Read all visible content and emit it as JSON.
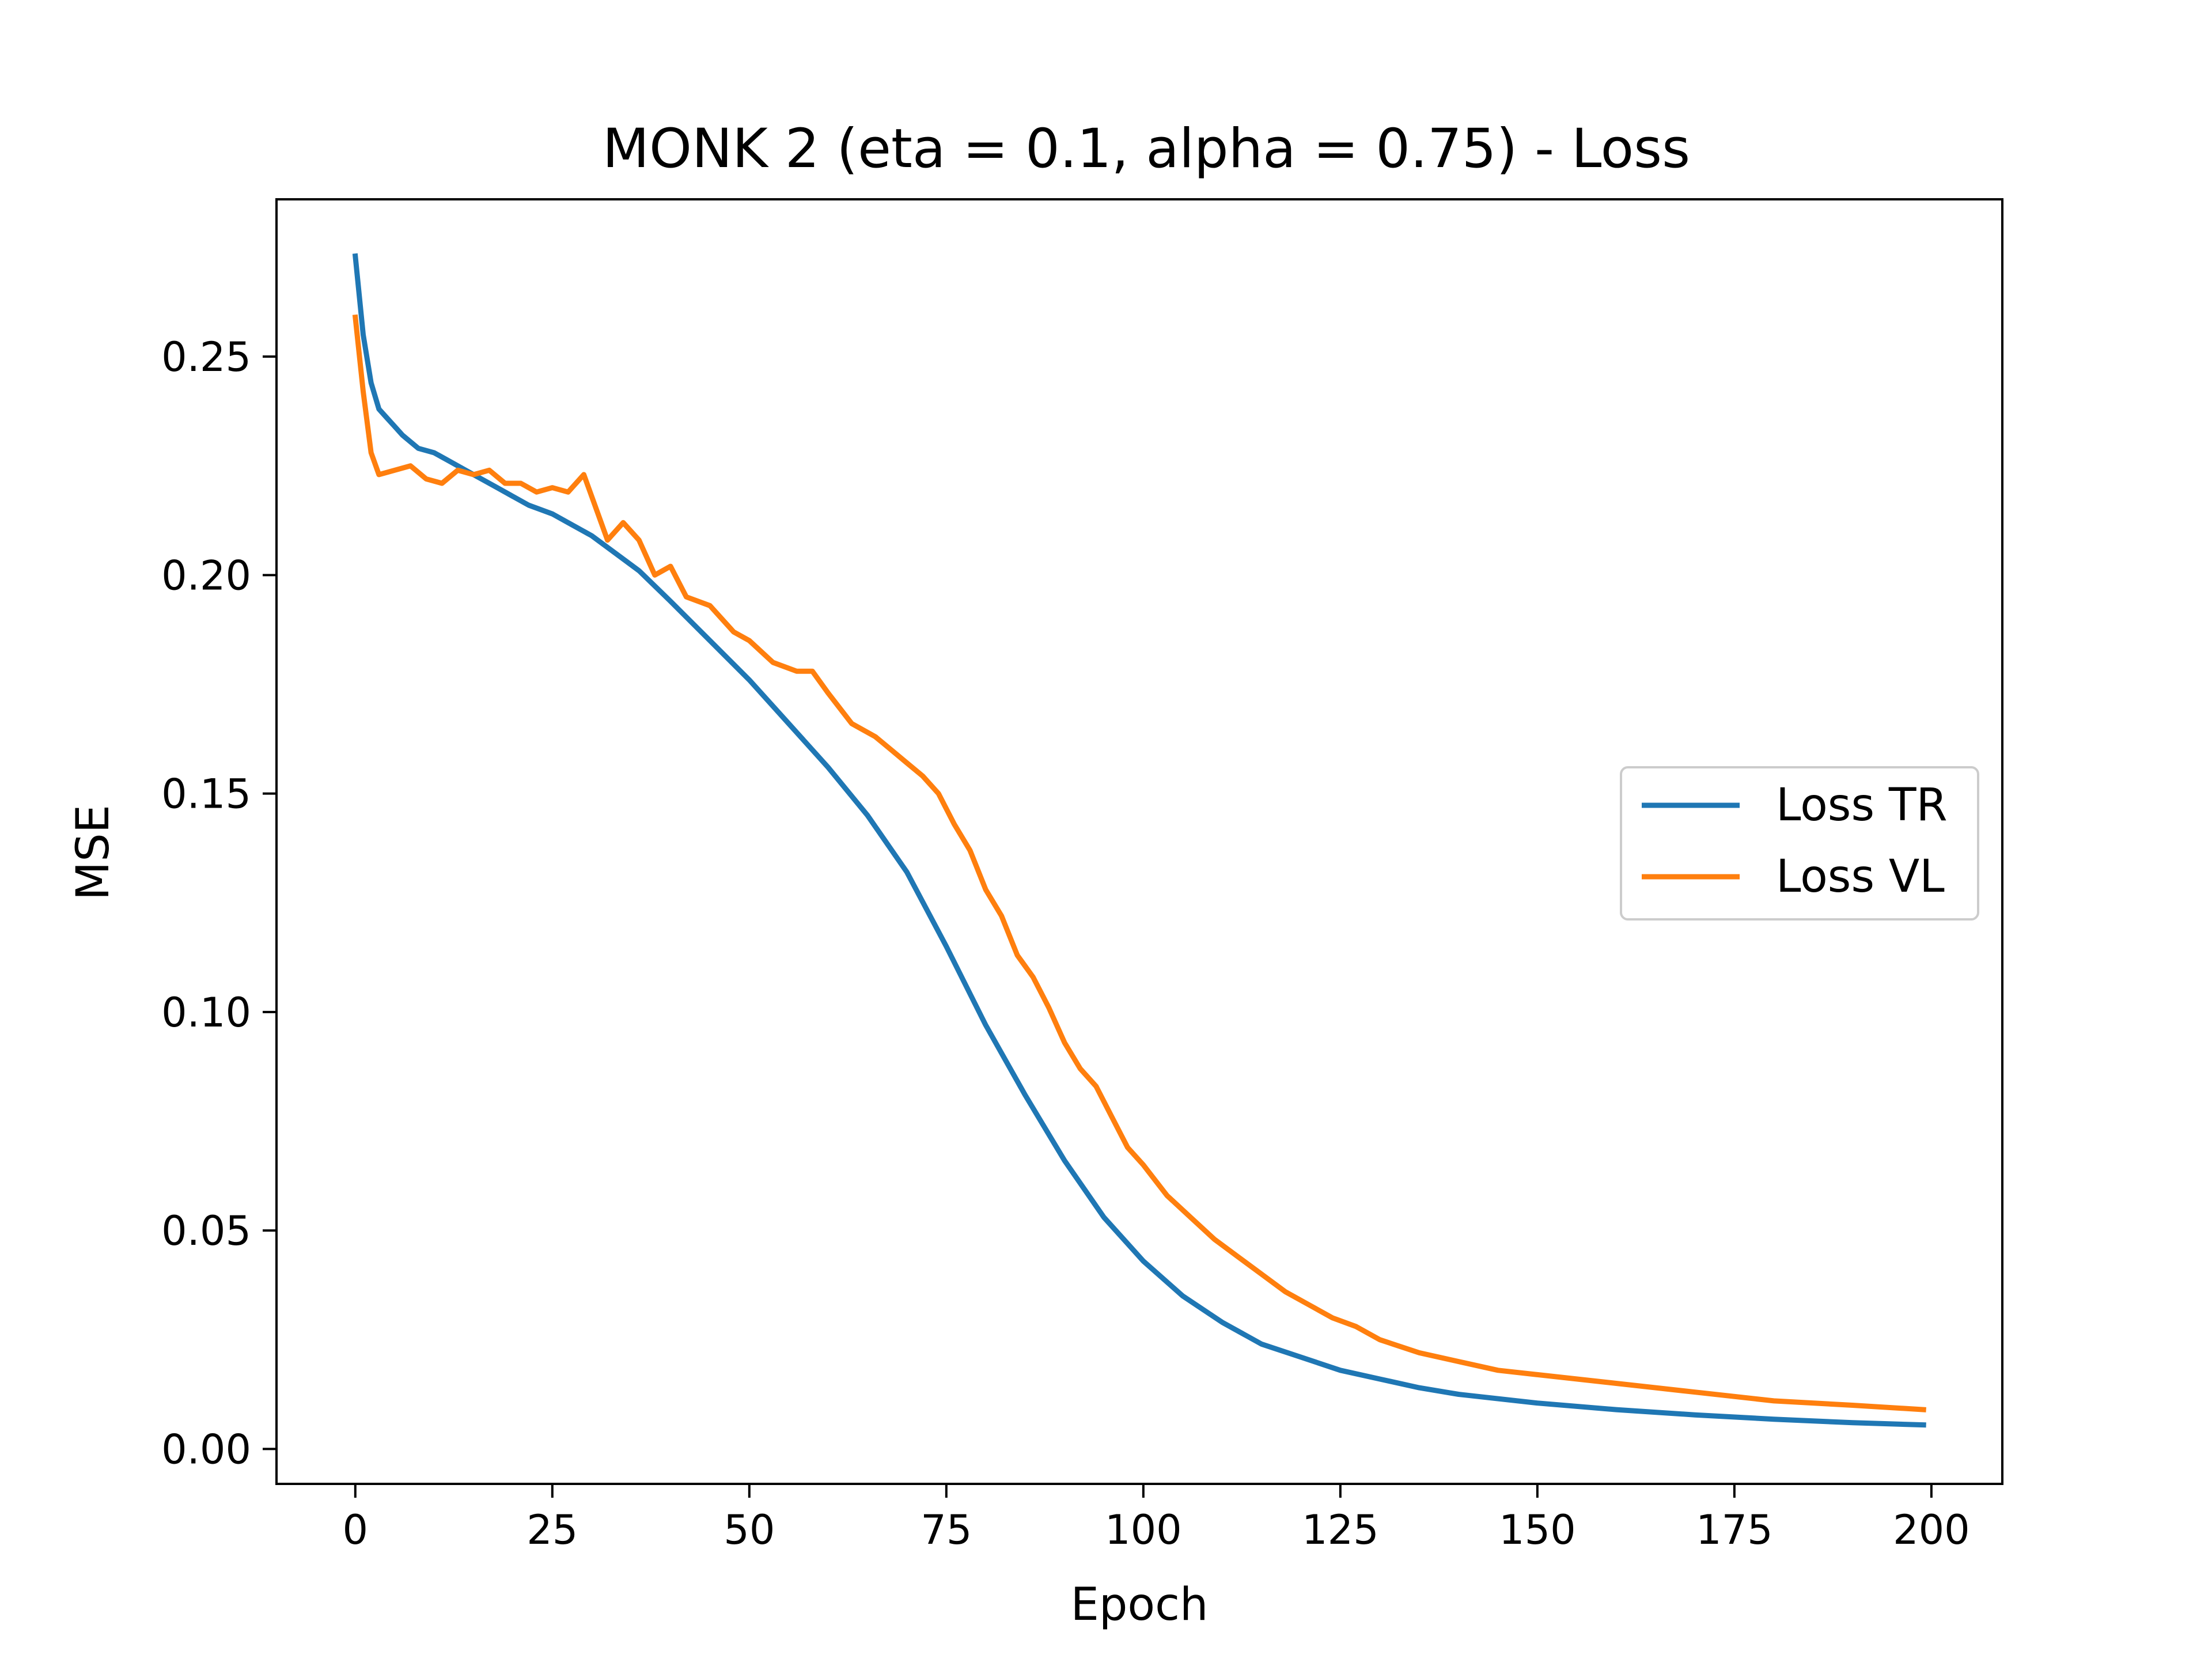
{
  "chart_data": {
    "type": "line",
    "title": "MONK 2 (eta = 0.1, alpha = 0.75) - Loss",
    "xlabel": "Epoch",
    "ylabel": "MSE",
    "xlim": [
      -10,
      209
    ],
    "ylim": [
      -0.008,
      0.286
    ],
    "xticks": [
      "0",
      "25",
      "50",
      "75",
      "100",
      "125",
      "150",
      "175",
      "200"
    ],
    "yticks": [
      "0.00",
      "0.05",
      "0.10",
      "0.15",
      "0.20",
      "0.25"
    ],
    "grid": false,
    "legend": "center-right",
    "series": [
      {
        "name": "Loss TR",
        "color": "#1f77b4",
        "x": [
          0,
          1,
          2,
          3,
          4,
          5,
          6,
          8,
          10,
          12,
          14,
          16,
          18,
          20,
          22,
          25,
          27,
          30,
          33,
          36,
          40,
          45,
          50,
          55,
          60,
          65,
          70,
          75,
          80,
          85,
          90,
          95,
          100,
          105,
          110,
          115,
          120,
          125,
          130,
          135,
          140,
          150,
          160,
          170,
          180,
          190,
          199
        ],
        "values": [
          0.273,
          0.255,
          0.244,
          0.238,
          0.236,
          0.234,
          0.232,
          0.229,
          0.228,
          0.226,
          0.224,
          0.222,
          0.22,
          0.218,
          0.216,
          0.214,
          0.212,
          0.209,
          0.205,
          0.201,
          0.194,
          0.185,
          0.176,
          0.166,
          0.156,
          0.145,
          0.132,
          0.115,
          0.097,
          0.081,
          0.066,
          0.053,
          0.043,
          0.035,
          0.029,
          0.024,
          0.021,
          0.018,
          0.016,
          0.014,
          0.0125,
          0.0105,
          0.009,
          0.0078,
          0.0068,
          0.006,
          0.0055
        ]
      },
      {
        "name": "Loss VL",
        "color": "#ff7f0e",
        "x": [
          0,
          1,
          2,
          3,
          5,
          7,
          9,
          11,
          13,
          15,
          17,
          19,
          21,
          23,
          25,
          27,
          29,
          31,
          32,
          34,
          36,
          38,
          40,
          42,
          45,
          48,
          50,
          53,
          56,
          58,
          60,
          63,
          66,
          68,
          70,
          72,
          74,
          76,
          78,
          80,
          82,
          84,
          86,
          88,
          90,
          92,
          94,
          96,
          98,
          100,
          103,
          106,
          109,
          112,
          115,
          118,
          121,
          124,
          127,
          130,
          135,
          140,
          145,
          150,
          160,
          170,
          180,
          190,
          199
        ],
        "values": [
          0.259,
          0.242,
          0.228,
          0.223,
          0.224,
          0.225,
          0.222,
          0.221,
          0.224,
          0.223,
          0.224,
          0.221,
          0.221,
          0.219,
          0.22,
          0.219,
          0.223,
          0.213,
          0.208,
          0.212,
          0.208,
          0.2,
          0.202,
          0.195,
          0.193,
          0.187,
          0.185,
          0.18,
          0.178,
          0.178,
          0.173,
          0.166,
          0.163,
          0.16,
          0.157,
          0.154,
          0.15,
          0.143,
          0.137,
          0.128,
          0.122,
          0.113,
          0.108,
          0.101,
          0.093,
          0.087,
          0.083,
          0.076,
          0.069,
          0.065,
          0.058,
          0.053,
          0.048,
          0.044,
          0.04,
          0.036,
          0.033,
          0.03,
          0.028,
          0.025,
          0.022,
          0.02,
          0.018,
          0.017,
          0.015,
          0.013,
          0.011,
          0.01,
          0.009
        ]
      }
    ]
  }
}
